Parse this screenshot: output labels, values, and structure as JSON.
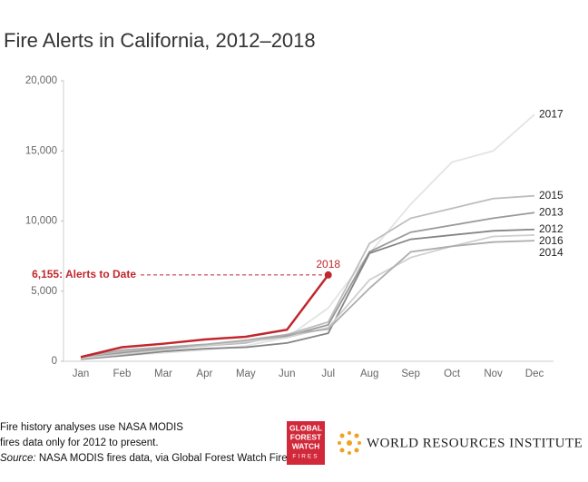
{
  "chart_data": {
    "type": "line",
    "title": "Fire Alerts in California, 2012–2018",
    "categories": [
      "Jan",
      "Feb",
      "Mar",
      "Apr",
      "May",
      "Jun",
      "Jul",
      "Aug",
      "Sep",
      "Oct",
      "Nov",
      "Dec"
    ],
    "ylim": [
      0,
      20000
    ],
    "yticks": [
      0,
      {
        "value": 5000,
        "label": "5,000"
      },
      {
        "value": 10000,
        "label": "10,000"
      },
      {
        "value": 15000,
        "label": "15,000"
      },
      {
        "value": 20000,
        "label": "20,000"
      }
    ],
    "grid": false,
    "series": [
      {
        "name": "2017",
        "color": "#e4e4e4",
        "values": [
          200,
          400,
          600,
          800,
          1100,
          1700,
          3800,
          7700,
          11200,
          14200,
          15000,
          17600
        ]
      },
      {
        "name": "2015",
        "color": "#bdbdbd",
        "values": [
          250,
          700,
          900,
          1100,
          1300,
          1900,
          2800,
          8400,
          10200,
          10900,
          11600,
          11800
        ]
      },
      {
        "name": "2013",
        "color": "#9a9a9a",
        "values": [
          200,
          600,
          900,
          1100,
          1400,
          1800,
          2600,
          7800,
          9200,
          9700,
          10200,
          10600
        ]
      },
      {
        "name": "2012",
        "color": "#858585",
        "values": [
          150,
          400,
          700,
          900,
          1000,
          1300,
          2000,
          7700,
          8700,
          9000,
          9300,
          9400
        ]
      },
      {
        "name": "2016",
        "color": "#cfcfcf",
        "values": [
          200,
          500,
          800,
          1100,
          1400,
          1700,
          2400,
          5800,
          7400,
          8200,
          8900,
          9000
        ]
      },
      {
        "name": "2014",
        "color": "#adadad",
        "values": [
          300,
          800,
          1000,
          1200,
          1500,
          1900,
          2300,
          5200,
          7800,
          8200,
          8500,
          8600
        ]
      },
      {
        "name": "2018",
        "color": "#c1272d",
        "values": [
          300,
          1000,
          1250,
          1550,
          1750,
          2250,
          6155,
          null,
          null,
          null,
          null,
          null
        ]
      }
    ],
    "annotation": "6,155: Alerts to Date",
    "footnote": [
      "Fire history analyses use NASA MODIS",
      "fires data only for 2012 to present."
    ],
    "source": {
      "label": "Source:",
      "text": "NASA MODIS fires data, via Global Forest Watch Fires"
    },
    "logos": {
      "gfw": [
        "GLOBAL",
        "FOREST",
        "WATCH",
        "FIRES"
      ],
      "wri": "WORLD RESOURCES INSTITUTE"
    }
  }
}
